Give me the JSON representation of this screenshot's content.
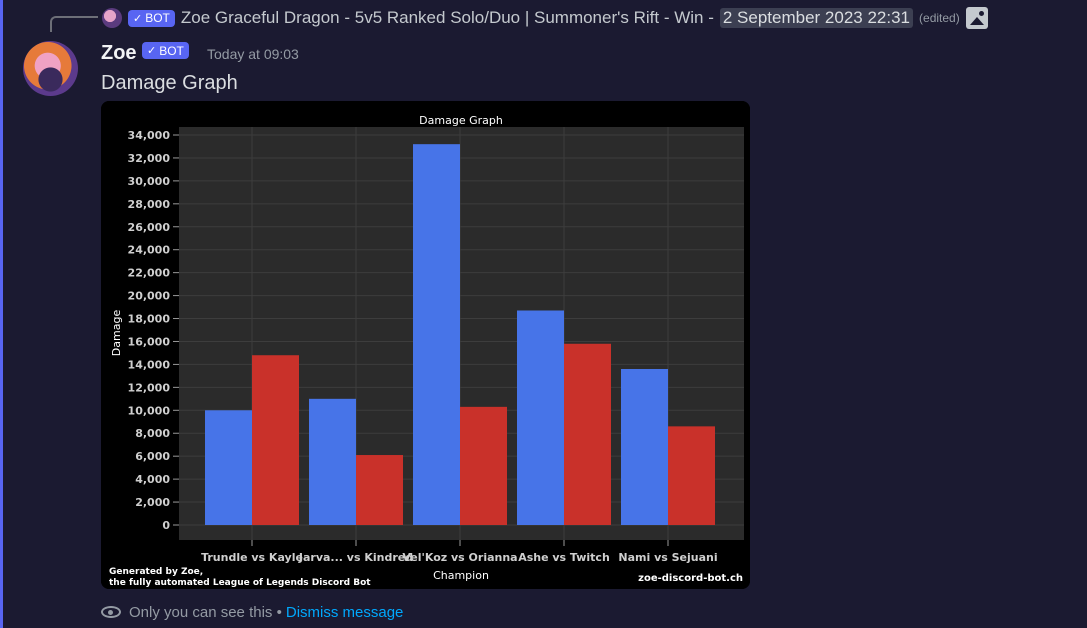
{
  "reply": {
    "bot_badge": "BOT",
    "title": "Zoe Graceful Dragon - 5v5 Ranked Solo/Duo | Summoner's Rift - Win -",
    "timestamp": "2 September 2023 22:31",
    "edited": "(edited)",
    "image_icon": "image-icon"
  },
  "message": {
    "username": "Zoe",
    "bot_badge": "BOT",
    "time": "Today at 09:03",
    "content": "Damage Graph"
  },
  "chart_data": {
    "type": "bar",
    "title": "Damage Graph",
    "xlabel": "Champion",
    "ylabel": "Damage",
    "ylim": [
      0,
      34000
    ],
    "yticks": [
      0,
      2000,
      4000,
      6000,
      8000,
      10000,
      12000,
      14000,
      16000,
      18000,
      20000,
      22000,
      24000,
      26000,
      28000,
      30000,
      32000,
      34000
    ],
    "ytick_labels": [
      "0",
      "2,000",
      "4,000",
      "6,000",
      "8,000",
      "10,000",
      "12,000",
      "14,000",
      "16,000",
      "18,000",
      "20,000",
      "22,000",
      "24,000",
      "26,000",
      "28,000",
      "30,000",
      "32,000",
      "34,000"
    ],
    "categories": [
      "Trundle vs Kayle",
      "Jarva... vs Kindred",
      "Vel'Koz vs Orianna",
      "Ashe vs Twitch",
      "Nami vs Sejuani"
    ],
    "series": [
      {
        "color": "#4774e8",
        "values": [
          10000,
          11000,
          33200,
          18700,
          13600
        ]
      },
      {
        "color": "#c9312a",
        "values": [
          14800,
          6100,
          10300,
          15800,
          8600
        ]
      }
    ],
    "grid": true,
    "footer_left": [
      "Generated by Zoe,",
      "the fully automated League of Legends Discord Bot"
    ],
    "footer_right": "zoe-discord-bot.ch",
    "background": "#000000",
    "plot_background": "#2b2b2b"
  },
  "footer": {
    "eye_icon": "eye-icon",
    "notice": "Only you can see this",
    "separator": "•",
    "dismiss": "Dismiss message"
  },
  "colors": {
    "accent": "#5865f2",
    "link": "#00a8fc",
    "background": "#1b1a31"
  }
}
